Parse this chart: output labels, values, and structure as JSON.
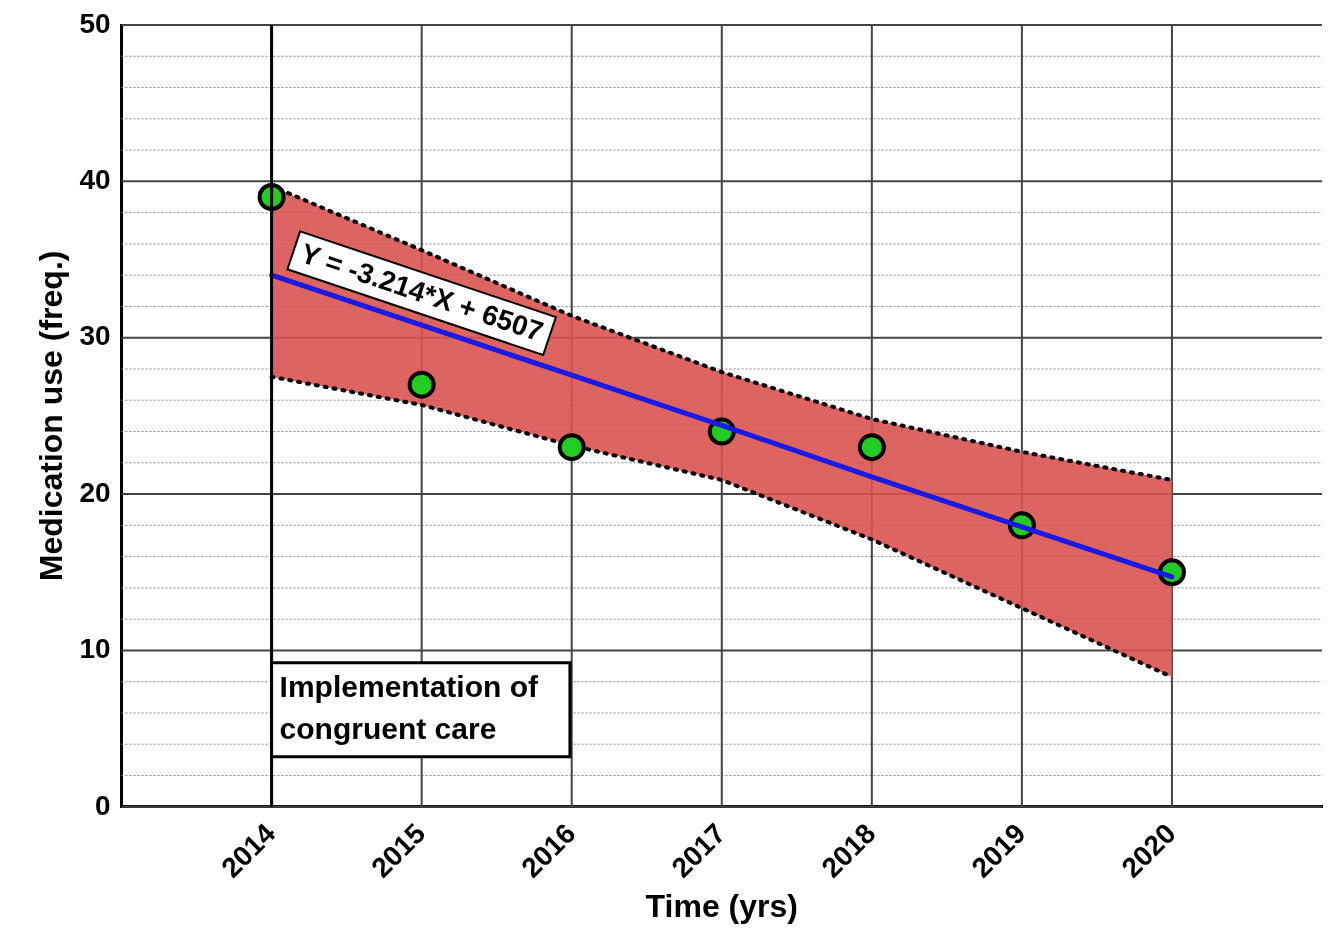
{
  "chart_data": {
    "type": "scatter",
    "xlabel": "Time (yrs)",
    "ylabel": "Medication use (freq.)",
    "xlim": [
      2013,
      2021
    ],
    "xticks": [
      2014,
      2015,
      2016,
      2017,
      2018,
      2019,
      2020
    ],
    "ylim": [
      0,
      50
    ],
    "yticks": [
      0,
      {
        "value": 2,
        "label": null
      },
      {
        "value": 4,
        "label": null
      },
      {
        "value": 6,
        "label": null
      },
      {
        "value": 8,
        "label": null
      },
      10,
      {
        "value": 12,
        "label": null
      },
      {
        "value": 14,
        "label": null
      },
      {
        "value": 16,
        "label": null
      },
      {
        "value": 18,
        "label": null
      },
      20,
      {
        "value": 22,
        "label": null
      },
      {
        "value": 24,
        "label": null
      },
      {
        "value": 26,
        "label": null
      },
      {
        "value": 28,
        "label": null
      },
      30,
      {
        "value": 32,
        "label": null
      },
      {
        "value": 34,
        "label": null
      },
      {
        "value": 36,
        "label": null
      },
      {
        "value": 38,
        "label": null
      },
      40,
      {
        "value": 42,
        "label": null
      },
      {
        "value": 44,
        "label": null
      },
      {
        "value": 46,
        "label": null
      },
      {
        "value": 48,
        "label": null
      },
      50
    ],
    "grid": true,
    "legend": false,
    "marker": "circle",
    "series": [
      {
        "type": "line",
        "color": "#1a1ae6",
        "x": [
          2014,
          2015,
          2016,
          2017,
          2018,
          2019,
          2020
        ],
        "values": [
          34.0,
          30.8,
          27.6,
          24.4,
          21.1,
          17.9,
          14.7
        ],
        "lower": [
          27.5,
          25.7,
          23.1,
          20.9,
          17.1,
          12.7,
          8.3
        ],
        "upper": [
          39.7,
          35.6,
          31.4,
          27.8,
          24.8,
          22.7,
          20.9
        ],
        "marker": "none"
      },
      {
        "type": "line",
        "color": "#000000",
        "line_style": "dotted",
        "marker": "none",
        "x": [
          2014,
          2015,
          2016,
          2017,
          2018,
          2019,
          2020
        ],
        "values": [
          27.5,
          25.7,
          23.1,
          20.9,
          17.1,
          12.7,
          8.3
        ]
      },
      {
        "type": "line",
        "color": "#000000",
        "line_style": "dotted",
        "marker": "none",
        "x": [
          2014,
          2015,
          2016,
          2017,
          2018,
          2019,
          2020
        ],
        "values": [
          39.7,
          35.6,
          31.4,
          27.8,
          24.8,
          22.7,
          20.9
        ]
      },
      {
        "type": "scatter",
        "color": "#22cc22",
        "x": [
          2014,
          2015,
          2016,
          2017,
          2018,
          2019,
          2020
        ],
        "values": [
          39,
          27,
          23,
          24,
          23,
          18,
          15
        ]
      }
    ],
    "ref_lines": [
      {
        "axis": "x",
        "value": 2014,
        "label": "Implementation of congruent care",
        "color": "#000000"
      }
    ],
    "annotations": [
      "Y = -3.214*X + 6507"
    ]
  }
}
